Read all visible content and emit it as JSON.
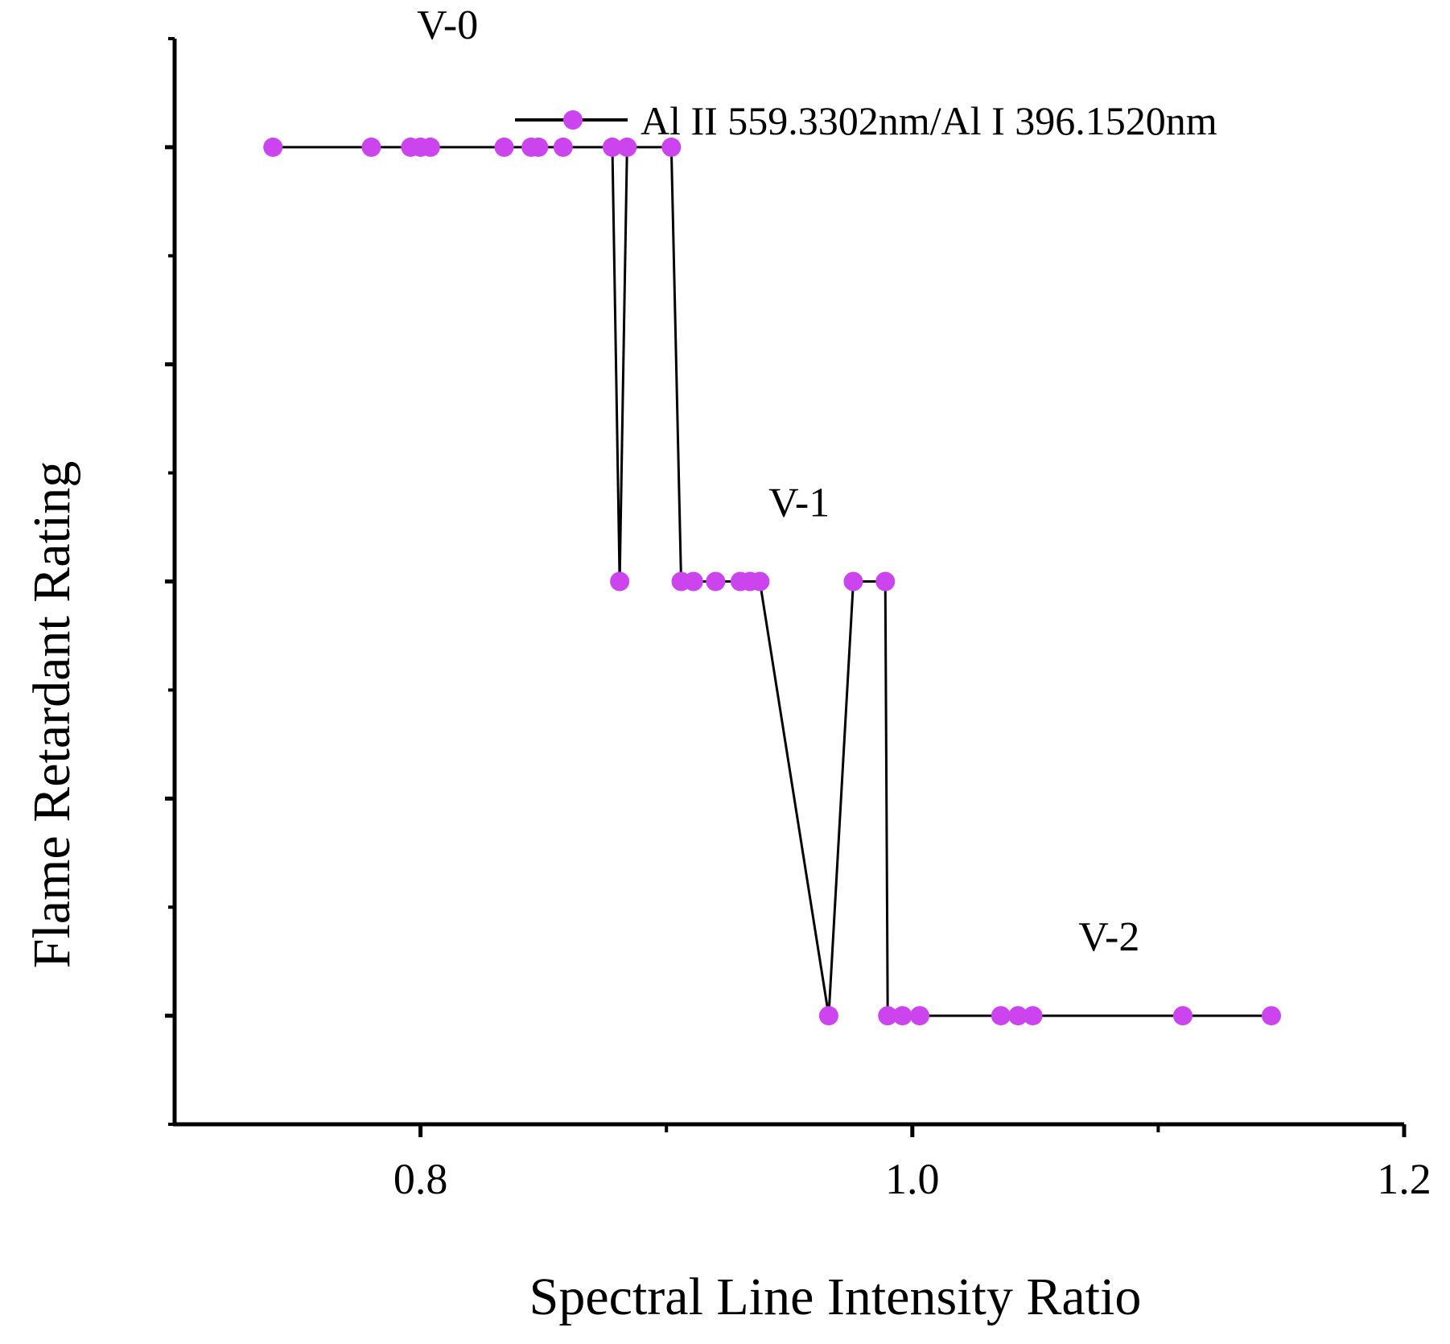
{
  "chart_data": {
    "type": "line",
    "title": "",
    "xlabel": "Spectral Line Intensity Ratio",
    "ylabel": "Flame Retardant Rating",
    "xlim": [
      0.7,
      1.2
    ],
    "ylim": [
      -0.5,
      4.5
    ],
    "x_ticks": [
      0.8,
      1.0,
      1.2
    ],
    "x_tick_labels": [
      "0.8",
      "1.0",
      "1.2"
    ],
    "x_minor_ticks": [
      0.9,
      1.1
    ],
    "y_major_ticks": [
      0,
      1,
      2,
      3,
      4
    ],
    "y_minor_ticks": [
      -0.5,
      0.5,
      1.5,
      2.5,
      3.5,
      4.5
    ],
    "grid": false,
    "legend_position": "top-right",
    "series": [
      {
        "name": "Al II 559.3302nm/Al I 396.1520nm",
        "color": "#cc44ee",
        "line_color": "#000000",
        "x": [
          0.74,
          0.78,
          0.796,
          0.8,
          0.804,
          0.834,
          0.845,
          0.848,
          0.858,
          0.878,
          0.881,
          0.884,
          0.902,
          0.906,
          0.911,
          0.92,
          0.93,
          0.934,
          0.938,
          0.966,
          0.976,
          0.989,
          0.99,
          0.996,
          1.003,
          1.036,
          1.043,
          1.049,
          1.11,
          1.146
        ],
        "y": [
          4,
          4,
          4,
          4,
          4,
          4,
          4,
          4,
          4,
          4,
          2,
          4,
          4,
          2,
          2,
          2,
          2,
          2,
          2,
          0,
          2,
          2,
          0,
          0,
          0,
          0,
          0,
          0,
          0,
          0
        ]
      }
    ],
    "annotations": [
      {
        "text": "V-0",
        "x": 0.811,
        "y": 4.5
      },
      {
        "text": "V-1",
        "x": 0.954,
        "y": 2.3
      },
      {
        "text": "V-2",
        "x": 1.08,
        "y": 0.3
      }
    ]
  }
}
